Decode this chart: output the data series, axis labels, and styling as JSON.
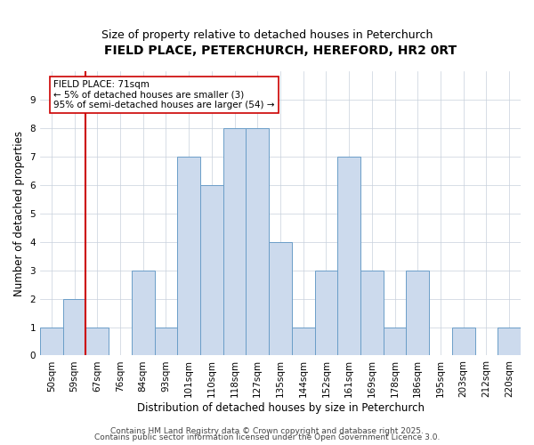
{
  "title": "FIELD PLACE, PETERCHURCH, HEREFORD, HR2 0RT",
  "subtitle": "Size of property relative to detached houses in Peterchurch",
  "xlabel": "Distribution of detached houses by size in Peterchurch",
  "ylabel": "Number of detached properties",
  "categories": [
    "50sqm",
    "59sqm",
    "67sqm",
    "76sqm",
    "84sqm",
    "93sqm",
    "101sqm",
    "110sqm",
    "118sqm",
    "127sqm",
    "135sqm",
    "144sqm",
    "152sqm",
    "161sqm",
    "169sqm",
    "178sqm",
    "186sqm",
    "195sqm",
    "203sqm",
    "212sqm",
    "220sqm"
  ],
  "values": [
    1,
    2,
    1,
    0,
    3,
    1,
    7,
    6,
    8,
    8,
    4,
    1,
    3,
    7,
    3,
    1,
    3,
    0,
    1,
    0,
    1
  ],
  "bar_color": "#ccdaed",
  "bar_edge_color": "#6b9ec8",
  "ylim": [
    0,
    10
  ],
  "yticks": [
    0,
    1,
    2,
    3,
    4,
    5,
    6,
    7,
    8,
    9
  ],
  "vline_x": 1.5,
  "vline_color": "#cc0000",
  "annotation_text": "FIELD PLACE: 71sqm\n← 5% of detached houses are smaller (3)\n95% of semi-detached houses are larger (54) →",
  "annotation_box_color": "#ffffff",
  "annotation_box_edgecolor": "#cc0000",
  "footer1": "Contains HM Land Registry data © Crown copyright and database right 2025.",
  "footer2": "Contains public sector information licensed under the Open Government Licence 3.0.",
  "background_color": "#ffffff",
  "grid_color": "#c8d0dc",
  "title_fontsize": 10,
  "subtitle_fontsize": 9,
  "axis_label_fontsize": 8.5,
  "tick_fontsize": 7.5,
  "annotation_fontsize": 7.5,
  "footer_fontsize": 6.5
}
